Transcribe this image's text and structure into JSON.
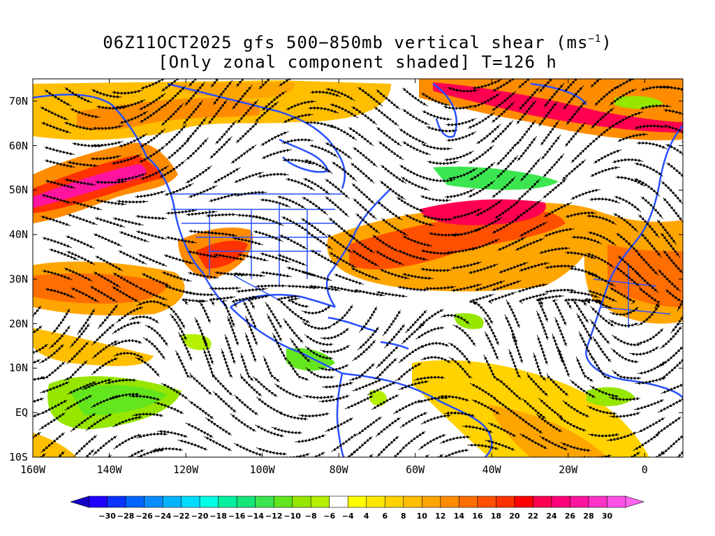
{
  "title": {
    "line1_prefix": "06Z11OCT2025 gfs 500−850mb vertical shear (ms",
    "line1_sup": "−1",
    "line1_suffix": ")",
    "line2": "[Only zonal component shaded] T=126 h"
  },
  "axes": {
    "lat_labels": [
      "70N",
      "60N",
      "50N",
      "40N",
      "30N",
      "20N",
      "10N",
      "EQ",
      "10S"
    ],
    "lon_labels": [
      "160W",
      "140W",
      "120W",
      "100W",
      "80W",
      "60W",
      "40W",
      "20W",
      "0"
    ]
  },
  "colorbar": {
    "labels": [
      "−30",
      "−28",
      "−26",
      "−24",
      "−22",
      "−20",
      "−18",
      "−16",
      "−14",
      "−12",
      "−10",
      "−8",
      "−6",
      "−4",
      "4",
      "6",
      "8",
      "10",
      "12",
      "14",
      "16",
      "18",
      "20",
      "22",
      "24",
      "26",
      "28",
      "30"
    ],
    "colors": [
      "#1e00ff",
      "#0a33ff",
      "#0066ff",
      "#0a8cff",
      "#00b4ff",
      "#00dcff",
      "#00ffe6",
      "#00f0a0",
      "#14e678",
      "#3ce650",
      "#64e61e",
      "#96e600",
      "#b4f000",
      "#ffffff",
      "#ffff00",
      "#ffe600",
      "#ffd200",
      "#ffbe00",
      "#ffa500",
      "#ff8c00",
      "#ff6e00",
      "#ff5000",
      "#ff3200",
      "#ff0000",
      "#ff0050",
      "#ff0078",
      "#ff14a0",
      "#ff32c8",
      "#ff50e6"
    ],
    "left_arrow_color": "#1400c8",
    "right_arrow_color": "#ff64f0"
  },
  "map": {
    "coastline_color": "#2850ff",
    "streamline_color": "#000000"
  }
}
